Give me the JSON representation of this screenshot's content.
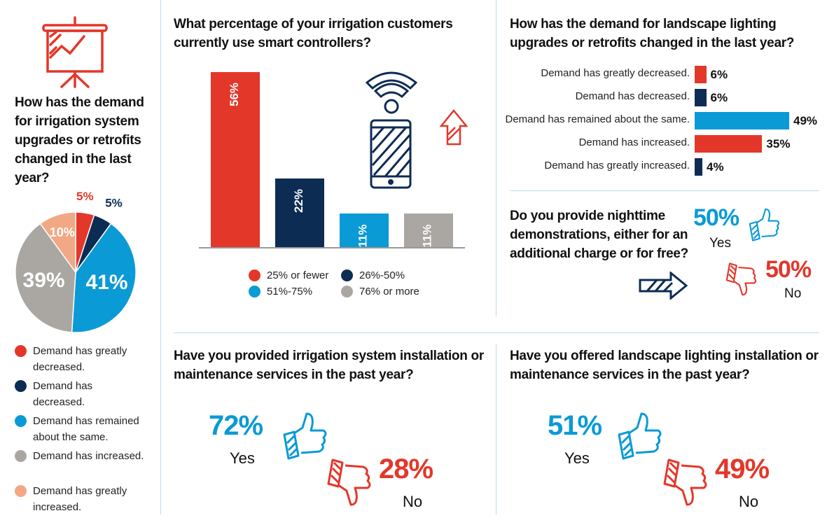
{
  "colors": {
    "red": "#e3372a",
    "navy": "#0d2c54",
    "blue": "#0a9ad6",
    "gray": "#aaa7a2",
    "peach": "#f2a884"
  },
  "left": {
    "question": "How has the demand for irrigation system upgrades or retrofits changed in the last year?"
  },
  "middle": {
    "question": "What percentage of your irrigation customers currently use smart controllers?"
  },
  "right_top": {
    "question": "How has the demand for landscape lighting upgrades or retrofits changed in the last year?"
  },
  "nighttime": {
    "question": "Do you provide nighttime demonstrations, either for an additional charge or for free?",
    "yes_value": "50%",
    "yes_label": "Yes",
    "no_value": "50%",
    "no_label": "No"
  },
  "irrigation_services": {
    "question": "Have you provided irrigation system installation or maintenance services in the past year?",
    "yes_value": "72%",
    "yes_label": "Yes",
    "no_value": "28%",
    "no_label": "No"
  },
  "lighting_services": {
    "question": "Have you offered landscape lighting installation or maintenance services in the past year?",
    "yes_value": "51%",
    "yes_label": "Yes",
    "no_value": "49%",
    "no_label": "No"
  },
  "chart_data": [
    {
      "type": "pie",
      "title": "How has the demand for irrigation system upgrades or retrofits changed in the last year?",
      "categories": [
        "Demand has greatly decreased.",
        "Demand has decreased.",
        "Demand has remained about the same.",
        "Demand has increased.",
        "Demand has greatly increased."
      ],
      "values": [
        5,
        5,
        41,
        39,
        10
      ],
      "labels": [
        "5%",
        "5%",
        "41%",
        "39%",
        "10%"
      ],
      "legend": "bottom"
    },
    {
      "type": "bar",
      "title": "What percentage of your irrigation customers currently use smart controllers?",
      "categories": [
        "25% or fewer",
        "26%-50%",
        "51%-75%",
        "76% or more"
      ],
      "values": [
        56,
        22,
        11,
        11
      ],
      "labels": [
        "56%",
        "22%",
        "11%",
        "11%"
      ],
      "ylim": [
        0,
        56
      ],
      "legend": "bottom"
    },
    {
      "type": "bar",
      "orientation": "horizontal",
      "title": "How has the demand for landscape lighting upgrades or retrofits changed in the last year?",
      "categories": [
        "Demand has greatly decreased.",
        "Demand has decreased.",
        "Demand has remained about the same.",
        "Demand has increased.",
        "Demand has greatly increased."
      ],
      "values": [
        6,
        6,
        49,
        35,
        4
      ],
      "labels": [
        "6%",
        "6%",
        "49%",
        "35%",
        "4%"
      ]
    }
  ]
}
